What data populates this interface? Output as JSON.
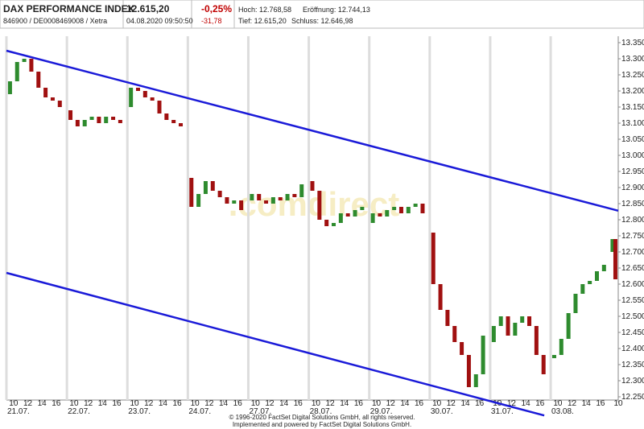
{
  "header": {
    "title": "DAX PERFORMANCE INDEX",
    "subtitle": "846900 / DE0008469008 / Xetra",
    "price": "12.615,20",
    "timestamp": "04.08.2020 09:50:50",
    "change_pct": "-0,25%",
    "change_abs": "-31,78",
    "high": "Hoch: 12.768,58",
    "open": "Eröffnung: 12.744,13",
    "low": "Tief: 12.615,20",
    "close": "Schluss: 12.646,98"
  },
  "footer": {
    "copyright": "© 1996-2020 FactSet Digital Solutions GmbH, all rights reserved.",
    "powered": "Implemented and powered by FactSet Digital Solutions GmbH."
  },
  "chart_data": {
    "type": "candlestick",
    "watermark": ".comdirect",
    "up_color": "#2e8b2e",
    "down_color": "#a01010",
    "x": [
      0.5,
      1.5,
      2.5,
      3.5,
      4.5,
      5.5,
      6.5,
      7.5,
      9,
      10,
      11,
      12,
      13,
      14,
      15,
      16,
      17.5,
      18.5,
      19.5,
      20.5,
      21.5,
      22.5,
      23.5,
      24.5,
      26,
      27,
      28,
      29,
      30,
      31,
      32,
      33,
      34.5,
      35.5,
      36.5,
      37.5,
      38.5,
      39.5,
      40.5,
      41.5,
      43,
      44,
      45,
      46,
      47,
      48,
      49,
      50,
      51.5,
      52.5,
      53.5,
      54.5,
      55.5,
      56.5,
      57.5,
      58.5,
      60,
      61,
      62,
      63,
      64,
      65,
      66,
      67,
      68.5,
      69.5,
      70.5,
      71.5,
      72.5,
      73.5,
      74.5,
      75.5,
      77,
      78,
      79,
      80,
      81,
      82,
      83,
      84,
      85.2,
      85.6
    ],
    "open": [
      13190,
      13230,
      13290,
      13300,
      13260,
      13210,
      13180,
      13170,
      13140,
      13110,
      13090,
      13110,
      13120,
      13100,
      13120,
      13110,
      13150,
      13210,
      13200,
      13180,
      13170,
      13130,
      13110,
      13100,
      12930,
      12840,
      12880,
      12920,
      12890,
      12870,
      12850,
      12860,
      12860,
      12880,
      12860,
      12850,
      12870,
      12860,
      12880,
      12870,
      12920,
      12890,
      12800,
      12780,
      12790,
      12820,
      12810,
      12830,
      12790,
      12820,
      12810,
      12830,
      12840,
      12820,
      12840,
      12850,
      12760,
      12600,
      12520,
      12470,
      12420,
      12380,
      12280,
      12320,
      12420,
      12470,
      12500,
      12440,
      12480,
      12500,
      12470,
      12380,
      12370,
      12380,
      12430,
      12510,
      12570,
      12600,
      12610,
      12640,
      12700,
      12740
    ],
    "close": [
      13230,
      13290,
      13300,
      13260,
      13210,
      13180,
      13170,
      13150,
      13110,
      13090,
      13110,
      13120,
      13100,
      13120,
      13110,
      13100,
      13210,
      13200,
      13180,
      13170,
      13130,
      13110,
      13100,
      13090,
      12840,
      12880,
      12920,
      12890,
      12870,
      12850,
      12860,
      12830,
      12880,
      12860,
      12850,
      12870,
      12860,
      12880,
      12870,
      12910,
      12890,
      12800,
      12780,
      12790,
      12820,
      12810,
      12830,
      12840,
      12820,
      12810,
      12830,
      12840,
      12820,
      12840,
      12850,
      12820,
      12600,
      12520,
      12470,
      12420,
      12380,
      12280,
      12320,
      12440,
      12470,
      12500,
      12440,
      12480,
      12500,
      12470,
      12380,
      12320,
      12380,
      12430,
      12510,
      12570,
      12600,
      12610,
      12640,
      12660,
      12740,
      12615
    ],
    "trendlines": [
      {
        "color": "#1a1ad8",
        "x": [
          0,
          86
        ],
        "y": [
          13325,
          12828
        ]
      },
      {
        "color": "#1a1ad8",
        "x": [
          0,
          75.6
        ],
        "y": [
          12635,
          12192
        ]
      }
    ],
    "xlim": [
      0,
      86
    ],
    "ylim": [
      12240,
      13370
    ],
    "yticks": [
      {
        "value": 12250,
        "label": "12.250"
      },
      {
        "value": 12300,
        "label": "12.300"
      },
      {
        "value": 12350,
        "label": "12.350"
      },
      {
        "value": 12400,
        "label": "12.400"
      },
      {
        "value": 12450,
        "label": "12.450"
      },
      {
        "value": 12500,
        "label": "12.500"
      },
      {
        "value": 12550,
        "label": "12.550"
      },
      {
        "value": 12600,
        "label": "12.600"
      },
      {
        "value": 12650,
        "label": "12.650"
      },
      {
        "value": 12700,
        "label": "12.700"
      },
      {
        "value": 12750,
        "label": "12.750"
      },
      {
        "value": 12800,
        "label": "12.800"
      },
      {
        "value": 12850,
        "label": "12.850"
      },
      {
        "value": 12900,
        "label": "12.900"
      },
      {
        "value": 12950,
        "label": "12.950"
      },
      {
        "value": 13000,
        "label": "13.000"
      },
      {
        "value": 13050,
        "label": "13.050"
      },
      {
        "value": 13100,
        "label": "13.100"
      },
      {
        "value": 13150,
        "label": "13.150"
      },
      {
        "value": 13200,
        "label": "13.200"
      },
      {
        "value": 13250,
        "label": "13.250"
      },
      {
        "value": 13300,
        "label": "13.300"
      },
      {
        "value": 13350,
        "label": "13.350"
      }
    ],
    "xticks": [
      {
        "value": 1,
        "label": "10"
      },
      {
        "value": 3,
        "label": "12"
      },
      {
        "value": 5,
        "label": "14"
      },
      {
        "value": 7,
        "label": "16"
      },
      {
        "value": 9.5,
        "label": "10"
      },
      {
        "value": 11.5,
        "label": "12"
      },
      {
        "value": 13.5,
        "label": "14"
      },
      {
        "value": 15.5,
        "label": "16"
      },
      {
        "value": 18,
        "label": "10"
      },
      {
        "value": 20,
        "label": "12"
      },
      {
        "value": 22,
        "label": "14"
      },
      {
        "value": 24,
        "label": "16"
      },
      {
        "value": 26.5,
        "label": "10"
      },
      {
        "value": 28.5,
        "label": "12"
      },
      {
        "value": 30.5,
        "label": "14"
      },
      {
        "value": 32.5,
        "label": "16"
      },
      {
        "value": 35,
        "label": "10"
      },
      {
        "value": 37,
        "label": "12"
      },
      {
        "value": 39,
        "label": "14"
      },
      {
        "value": 41,
        "label": "16"
      },
      {
        "value": 43.5,
        "label": "10"
      },
      {
        "value": 45.5,
        "label": "12"
      },
      {
        "value": 47.5,
        "label": "14"
      },
      {
        "value": 49.5,
        "label": "16"
      },
      {
        "value": 52,
        "label": "10"
      },
      {
        "value": 54,
        "label": "12"
      },
      {
        "value": 56,
        "label": "14"
      },
      {
        "value": 58,
        "label": "16"
      },
      {
        "value": 60.5,
        "label": "10"
      },
      {
        "value": 62.5,
        "label": "12"
      },
      {
        "value": 64.5,
        "label": "14"
      },
      {
        "value": 66.5,
        "label": "16"
      },
      {
        "value": 69,
        "label": "10"
      },
      {
        "value": 71,
        "label": "12"
      },
      {
        "value": 73,
        "label": "14"
      },
      {
        "value": 75,
        "label": "16"
      },
      {
        "value": 77.5,
        "label": "10"
      },
      {
        "value": 79.5,
        "label": "12"
      },
      {
        "value": 81.5,
        "label": "14"
      },
      {
        "value": 83.5,
        "label": "16"
      },
      {
        "value": 86,
        "label": "10"
      }
    ],
    "dateticks": [
      {
        "value": 0,
        "label": "21.07."
      },
      {
        "value": 8.5,
        "label": "22.07."
      },
      {
        "value": 17,
        "label": "23.07."
      },
      {
        "value": 25.5,
        "label": "24.07."
      },
      {
        "value": 34,
        "label": "27.07."
      },
      {
        "value": 42.5,
        "label": "28.07."
      },
      {
        "value": 51,
        "label": "29.07."
      },
      {
        "value": 59.5,
        "label": "30.07."
      },
      {
        "value": 68,
        "label": "31.07."
      },
      {
        "value": 76.5,
        "label": "03.08."
      }
    ]
  }
}
